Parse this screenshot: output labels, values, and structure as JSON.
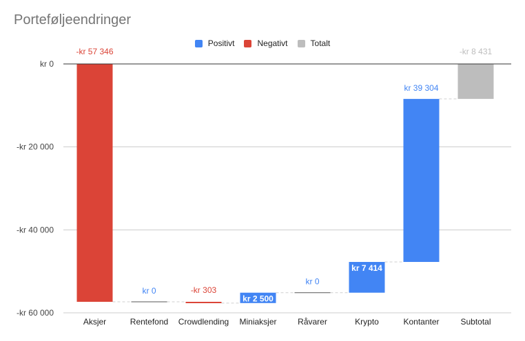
{
  "chart_data": {
    "type": "waterfall",
    "title": "Porteføljeendringer",
    "xlabel": "",
    "ylabel": "",
    "ylim": [
      -60000,
      0
    ],
    "yticks": [
      0,
      -20000,
      -40000,
      -60000
    ],
    "ytick_labels": [
      "kr 0",
      "-kr 20 000",
      "-kr 40 000",
      "-kr 60 000"
    ],
    "grid": true,
    "legend_position": "top",
    "legend": [
      {
        "key": "positive",
        "label": "Positivt",
        "color": "#4285f4"
      },
      {
        "key": "negative",
        "label": "Negativt",
        "color": "#db4437"
      },
      {
        "key": "total",
        "label": "Totalt",
        "color": "#bdbdbd"
      }
    ],
    "categories": [
      "Aksjer",
      "Rentefond",
      "Crowdlending",
      "Miniaksjer",
      "Råvarer",
      "Krypto",
      "Kontanter",
      "Subtotal"
    ],
    "steps": [
      {
        "category": "Aksjer",
        "value": -57346,
        "kind": "negative",
        "label": "-kr  57 346"
      },
      {
        "category": "Rentefond",
        "value": 0,
        "kind": "positive",
        "label": "kr   0"
      },
      {
        "category": "Crowdlending",
        "value": -303,
        "kind": "negative",
        "label": "-kr   303"
      },
      {
        "category": "Miniaksjer",
        "value": 2500,
        "kind": "positive",
        "label": "kr  2 500"
      },
      {
        "category": "Råvarer",
        "value": 0,
        "kind": "positive",
        "label": "kr   0"
      },
      {
        "category": "Krypto",
        "value": 7414,
        "kind": "positive",
        "label": "kr  7 414"
      },
      {
        "category": "Kontanter",
        "value": 39304,
        "kind": "positive",
        "label": "kr  39 304"
      },
      {
        "category": "Subtotal",
        "value": -8431,
        "kind": "total",
        "label": "-kr  8 431"
      }
    ]
  }
}
